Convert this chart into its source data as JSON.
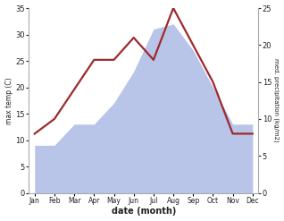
{
  "months": [
    "Jan",
    "Feb",
    "Mar",
    "Apr",
    "May",
    "Jun",
    "Jul",
    "Aug",
    "Sep",
    "Oct",
    "Nov",
    "Dec"
  ],
  "precip": [
    9.0,
    9.0,
    13.0,
    13.0,
    17.0,
    23.0,
    31.0,
    32.0,
    27.0,
    20.0,
    13.0,
    13.0
  ],
  "temp": [
    8.0,
    10.0,
    14.0,
    18.0,
    18.0,
    21.0,
    18.0,
    25.0,
    20.0,
    15.0,
    8.0,
    8.0
  ],
  "temp_color": "#9e2a2b",
  "precip_fill_color": "#b8c4e8",
  "temp_ylim": [
    0,
    35
  ],
  "precip_ylim": [
    0,
    25
  ],
  "temp_yticks": [
    0,
    5,
    10,
    15,
    20,
    25,
    30,
    35
  ],
  "precip_yticks": [
    0,
    5,
    10,
    15,
    20,
    25
  ],
  "ylabel_left": "max temp (C)",
  "ylabel_right": "med. precipitation (kg/m2)",
  "xlabel": "date (month)",
  "background_color": "#ffffff",
  "temp_linewidth": 1.6,
  "spine_color": "#aaaaaa"
}
